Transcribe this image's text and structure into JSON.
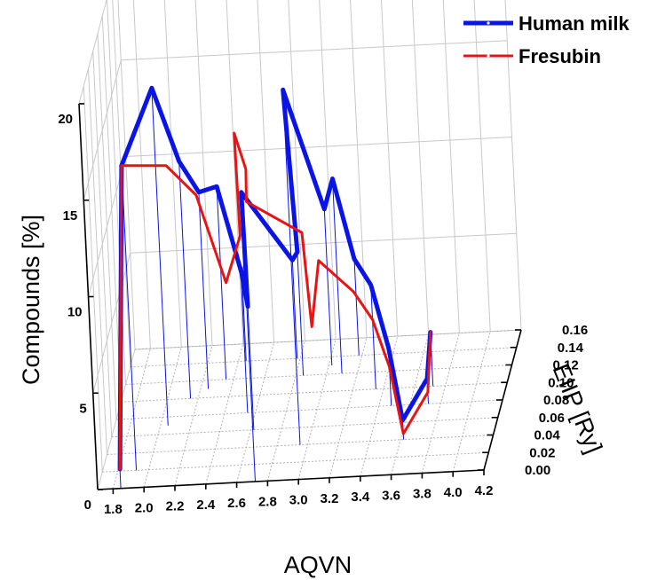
{
  "chart_data": {
    "type": "line",
    "title": "",
    "xlabel": "AQVN",
    "ylabel": "EIIP [Ry]",
    "zlabel": "Compounds [%]",
    "x_ticks": [
      "1.8",
      "2.0",
      "2.2",
      "2.4",
      "2.6",
      "2.8",
      "3.0",
      "3.2",
      "3.4",
      "3.6",
      "3.8",
      "4.0",
      "4.2"
    ],
    "y_ticks": [
      "0.00",
      "0.02",
      "0.04",
      "0.06",
      "0.08",
      "0.10",
      "0.12",
      "0.14",
      "0.16"
    ],
    "z_ticks": [
      "0",
      "5",
      "10",
      "15",
      "20"
    ],
    "xlim": [
      1.7,
      4.2
    ],
    "ylim": [
      0,
      0.16
    ],
    "zlim": [
      0,
      20
    ],
    "grid": true,
    "legend_position": "top-right",
    "series": [
      {
        "name": "Human milk",
        "color": "#0a14e6",
        "points": [
          {
            "x": 1.85,
            "y": 0.0,
            "z": 1.0
          },
          {
            "x": 1.92,
            "y": 0.02,
            "z": 15.8
          },
          {
            "x": 2.05,
            "y": 0.07,
            "z": 17.5
          },
          {
            "x": 2.15,
            "y": 0.1,
            "z": 12.3
          },
          {
            "x": 2.25,
            "y": 0.11,
            "z": 10.2
          },
          {
            "x": 2.35,
            "y": 0.12,
            "z": 10.0
          },
          {
            "x": 2.45,
            "y": 0.14,
            "z": 4.5
          },
          {
            "x": 2.55,
            "y": 0.08,
            "z": 7.5
          },
          {
            "x": 2.62,
            "y": 0.06,
            "z": 6.4
          },
          {
            "x": 2.72,
            "y": 0.0,
            "z": 15.0
          },
          {
            "x": 2.78,
            "y": 0.14,
            "z": 5.1
          },
          {
            "x": 2.85,
            "y": 0.12,
            "z": 6.4
          },
          {
            "x": 2.95,
            "y": 0.04,
            "z": 18.4
          },
          {
            "x": 3.02,
            "y": 0.13,
            "z": 8.1
          },
          {
            "x": 3.1,
            "y": 0.12,
            "z": 10.1
          },
          {
            "x": 3.18,
            "y": 0.14,
            "z": 5.0
          },
          {
            "x": 3.35,
            "y": 0.1,
            "z": 5.4
          },
          {
            "x": 3.48,
            "y": 0.08,
            "z": 3.0
          },
          {
            "x": 3.62,
            "y": 0.04,
            "z": 1.0
          },
          {
            "x": 3.72,
            "y": 0.08,
            "z": 1.3
          },
          {
            "x": 3.72,
            "y": 0.1,
            "z": 2.8
          }
        ]
      },
      {
        "name": "Fresubin",
        "color": "#e81414",
        "points": [
          {
            "x": 1.85,
            "y": 0.0,
            "z": 1.0
          },
          {
            "x": 1.92,
            "y": 0.02,
            "z": 15.8
          },
          {
            "x": 2.1,
            "y": 0.08,
            "z": 13.0
          },
          {
            "x": 2.25,
            "y": 0.1,
            "z": 10.5
          },
          {
            "x": 2.38,
            "y": 0.12,
            "z": 5.0
          },
          {
            "x": 2.45,
            "y": 0.14,
            "z": 6.5
          },
          {
            "x": 2.55,
            "y": 0.08,
            "z": 14.5
          },
          {
            "x": 2.65,
            "y": 0.06,
            "z": 13.5
          },
          {
            "x": 2.75,
            "y": 0.0,
            "z": 14.5
          },
          {
            "x": 2.85,
            "y": 0.14,
            "z": 6.5
          },
          {
            "x": 2.92,
            "y": 0.12,
            "z": 2.5
          },
          {
            "x": 3.02,
            "y": 0.1,
            "z": 6.8
          },
          {
            "x": 3.2,
            "y": 0.12,
            "z": 4.2
          },
          {
            "x": 3.35,
            "y": 0.1,
            "z": 3.6
          },
          {
            "x": 3.48,
            "y": 0.08,
            "z": 2.0
          },
          {
            "x": 3.62,
            "y": 0.04,
            "z": 0.3
          },
          {
            "x": 3.72,
            "y": 0.08,
            "z": 0.6
          },
          {
            "x": 3.72,
            "y": 0.1,
            "z": 2.8
          }
        ]
      }
    ]
  }
}
